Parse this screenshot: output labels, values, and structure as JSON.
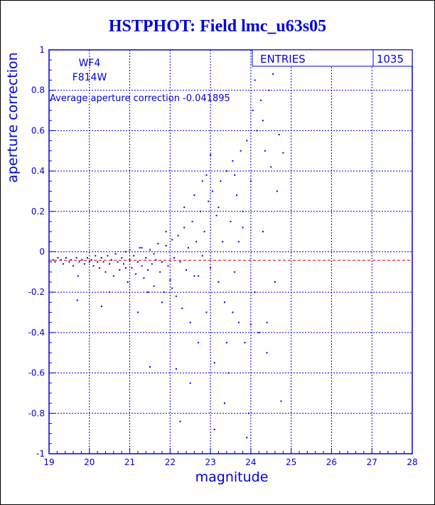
{
  "chart_data": {
    "type": "scatter",
    "title": "HSTPHOT: Field lmc_u63s05",
    "xlabel": "magnitude",
    "ylabel": "aperture correction",
    "xlim": [
      19,
      28
    ],
    "ylim": [
      -1,
      1
    ],
    "xticks": [
      "19",
      "20",
      "21",
      "22",
      "23",
      "24",
      "25",
      "26",
      "27",
      "28"
    ],
    "yticks": [
      "-1",
      "-0.8",
      "-0.6",
      "-0.4",
      "-0.2",
      "0",
      "0.2",
      "0.4",
      "0.6",
      "0.8",
      "1"
    ],
    "grid": true,
    "camera_label": "WF4",
    "filter_label": "F814W",
    "average_text": "Average aperture correction -0.041895",
    "average_value": -0.041895,
    "stats": {
      "label": "ENTRIES",
      "value": "1035"
    },
    "point_color": "#0000e0",
    "axis_color": "#0000e0",
    "average_line_color": "#e00000",
    "points": [
      [
        19.1,
        -0.04
      ],
      [
        19.15,
        -0.05
      ],
      [
        19.22,
        -0.03
      ],
      [
        19.3,
        -0.04
      ],
      [
        19.35,
        -0.06
      ],
      [
        19.42,
        -0.03
      ],
      [
        19.5,
        -0.05
      ],
      [
        19.55,
        -0.04
      ],
      [
        19.6,
        -0.07
      ],
      [
        19.68,
        -0.03
      ],
      [
        19.72,
        -0.12
      ],
      [
        19.75,
        -0.05
      ],
      [
        19.82,
        -0.04
      ],
      [
        19.88,
        -0.06
      ],
      [
        19.95,
        -0.03
      ],
      [
        20.0,
        -0.05
      ],
      [
        20.05,
        -0.04
      ],
      [
        20.1,
        -0.07
      ],
      [
        20.15,
        -0.02
      ],
      [
        20.2,
        -0.05
      ],
      [
        20.25,
        -0.08
      ],
      [
        20.3,
        -0.03
      ],
      [
        20.35,
        -0.05
      ],
      [
        20.4,
        -0.1
      ],
      [
        20.45,
        -0.02
      ],
      [
        20.5,
        -0.06
      ],
      [
        20.55,
        -0.04
      ],
      [
        20.6,
        -0.12
      ],
      [
        20.65,
        -0.01
      ],
      [
        20.7,
        -0.05
      ],
      [
        20.75,
        -0.09
      ],
      [
        20.8,
        -0.03
      ],
      [
        20.85,
        -0.06
      ],
      [
        20.9,
        0.0
      ],
      [
        20.95,
        -0.15
      ],
      [
        21.0,
        -0.04
      ],
      [
        21.05,
        -0.08
      ],
      [
        21.1,
        -0.02
      ],
      [
        21.15,
        -0.11
      ],
      [
        21.2,
        -0.05
      ],
      [
        21.25,
        0.02
      ],
      [
        21.3,
        -0.07
      ],
      [
        21.35,
        -0.13
      ],
      [
        21.4,
        -0.03
      ],
      [
        21.45,
        -0.09
      ],
      [
        21.5,
        0.01
      ],
      [
        21.55,
        -0.06
      ],
      [
        21.6,
        -0.17
      ],
      [
        21.65,
        -0.04
      ],
      [
        21.7,
        0.04
      ],
      [
        21.75,
        -0.1
      ],
      [
        21.8,
        -0.05
      ],
      [
        21.85,
        -0.2
      ],
      [
        21.9,
        0.03
      ],
      [
        21.95,
        -0.07
      ],
      [
        22.0,
        -0.14
      ],
      [
        22.05,
        0.06
      ],
      [
        22.1,
        -0.03
      ],
      [
        22.15,
        -0.22
      ],
      [
        22.2,
        0.08
      ],
      [
        22.25,
        -0.05
      ],
      [
        22.3,
        -0.28
      ],
      [
        22.35,
        0.12
      ],
      [
        22.4,
        -0.09
      ],
      [
        22.45,
        0.02
      ],
      [
        22.5,
        -0.35
      ],
      [
        22.55,
        0.15
      ],
      [
        22.6,
        -0.12
      ],
      [
        22.65,
        0.05
      ],
      [
        22.7,
        -0.45
      ],
      [
        22.75,
        0.2
      ],
      [
        22.8,
        -0.02
      ],
      [
        22.85,
        0.1
      ],
      [
        22.9,
        -0.3
      ],
      [
        22.95,
        0.25
      ],
      [
        23.0,
        -0.08
      ],
      [
        23.05,
        0.3
      ],
      [
        23.1,
        -0.55
      ],
      [
        23.15,
        0.18
      ],
      [
        23.2,
        -0.15
      ],
      [
        23.25,
        0.35
      ],
      [
        23.3,
        0.05
      ],
      [
        23.35,
        -0.25
      ],
      [
        23.4,
        0.4
      ],
      [
        23.45,
        -0.6
      ],
      [
        23.5,
        0.15
      ],
      [
        23.55,
        0.45
      ],
      [
        23.6,
        -0.1
      ],
      [
        23.65,
        0.28
      ],
      [
        23.7,
        -0.35
      ],
      [
        23.75,
        0.5
      ],
      [
        23.8,
        0.2
      ],
      [
        23.85,
        -0.45
      ],
      [
        23.9,
        0.55
      ],
      [
        23.95,
        -0.8
      ],
      [
        24.0,
        0.35
      ],
      [
        24.05,
        0.7
      ],
      [
        24.1,
        -0.2
      ],
      [
        24.15,
        0.6
      ],
      [
        24.2,
        -0.4
      ],
      [
        24.25,
        0.75
      ],
      [
        24.3,
        0.1
      ],
      [
        24.35,
        0.5
      ],
      [
        24.4,
        -0.35
      ],
      [
        24.45,
        0.8
      ],
      [
        24.5,
        0.42
      ],
      [
        24.55,
        0.88
      ],
      [
        24.6,
        -0.15
      ],
      [
        24.65,
        0.3
      ],
      [
        24.7,
        0.58
      ],
      [
        24.75,
        -0.74
      ],
      [
        24.8,
        0.49
      ],
      [
        22.25,
        -0.84
      ],
      [
        22.5,
        -0.65
      ],
      [
        23.1,
        -0.88
      ],
      [
        23.35,
        -0.75
      ],
      [
        23.9,
        -0.92
      ],
      [
        22.15,
        -0.58
      ],
      [
        21.5,
        -0.57
      ],
      [
        20.3,
        -0.27
      ],
      [
        20.5,
        -0.2
      ],
      [
        19.7,
        -0.24
      ],
      [
        21.2,
        -0.3
      ],
      [
        21.8,
        -0.25
      ],
      [
        22.35,
        0.22
      ],
      [
        22.6,
        0.28
      ],
      [
        22.9,
        0.38
      ],
      [
        23.2,
        0.22
      ],
      [
        23.6,
        0.38
      ],
      [
        24.1,
        0.85
      ],
      [
        24.3,
        0.65
      ],
      [
        23.0,
        0.48
      ],
      [
        22.8,
        0.35
      ],
      [
        21.9,
        0.1
      ],
      [
        22.05,
        -0.18
      ],
      [
        21.3,
        0.02
      ],
      [
        21.6,
        -0.01
      ],
      [
        21.0,
        0.01
      ],
      [
        20.9,
        -0.08
      ],
      [
        21.45,
        -0.2
      ],
      [
        22.7,
        -0.12
      ],
      [
        23.4,
        -0.45
      ],
      [
        23.55,
        -0.3
      ],
      [
        24.0,
        -0.36
      ],
      [
        24.4,
        -0.5
      ],
      [
        23.8,
        0.12
      ],
      [
        23.7,
        0.05
      ]
    ]
  }
}
